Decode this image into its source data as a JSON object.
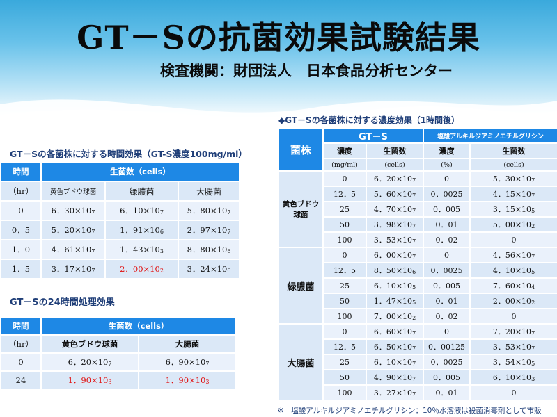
{
  "title": "GT－Sの抗菌効果試験結果",
  "subtitle": "検査機関：財団法人　日本食品分析センター",
  "section1": {
    "title": "GT－Sの各菌株に対する時間効果（GT-S濃度100mg/ml）",
    "col_time": "時間",
    "col_unit": "（hr）",
    "col_count": "生菌数（cells）",
    "bacteria": [
      "黄色ブドウ球菌",
      "緑膿菌",
      "大腸菌"
    ],
    "rows": [
      {
        "time": "0",
        "values": [
          "6．30×10",
          "6．10×10",
          "5．80×10"
        ],
        "exps": [
          "7",
          "7",
          "7"
        ]
      },
      {
        "time": "0．5",
        "values": [
          "5．20×10",
          "1．91×10",
          "2．97×10"
        ],
        "exps": [
          "7",
          "6",
          "7"
        ]
      },
      {
        "time": "1．0",
        "values": [
          "4．61×10",
          "1．43×10",
          "8．80×10"
        ],
        "exps": [
          "7",
          "3",
          "6"
        ]
      },
      {
        "time": "1．5",
        "values": [
          "3．17×10",
          "2．00×10",
          "3．24×10"
        ],
        "exps": [
          "7",
          "2",
          "6"
        ]
      }
    ]
  },
  "section2": {
    "title": "GT－Sの24時間処理効果",
    "col_time": "時間",
    "col_unit": "（hr）",
    "col_count": "生菌数（cells）",
    "bacteria": [
      "黄色ブドウ球菌",
      "大腸菌"
    ],
    "rows": [
      {
        "time": "0",
        "values": [
          "6．20×10",
          "6．90×10"
        ],
        "exps": [
          "7",
          "7"
        ]
      },
      {
        "time": "24",
        "values": [
          "1．90×10",
          "1．90×10"
        ],
        "exps": [
          "3",
          "3"
        ]
      }
    ]
  },
  "section3": {
    "title": "GT－Sの各菌株に対する濃度効果（1時間後）",
    "col_strain": "菌株",
    "group_gts": "GT－S",
    "group_ref": "塩酸アルキルジアミノエチルグリシン",
    "col_conc": "濃度",
    "col_count": "生菌数",
    "unit_conc_gts": "(mg/ml)",
    "unit_count": "(cells)",
    "unit_conc_ref": "(%)",
    "strains": [
      {
        "name": "黄色ブドウ\n球菌",
        "rows": [
          {
            "c": "0",
            "n": "6．20×10",
            "ne": "7",
            "rc": "0",
            "rn": "5．30×10",
            "rne": "7"
          },
          {
            "c": "12．5",
            "n": "5．60×10",
            "ne": "7",
            "rc": "0．0025",
            "rn": "4．15×10",
            "rne": "7"
          },
          {
            "c": "25",
            "n": "4．70×10",
            "ne": "7",
            "rc": "0．005",
            "rn": "3．15×10",
            "rne": "5"
          },
          {
            "c": "50",
            "n": "3．98×10",
            "ne": "7",
            "rc": "0．01",
            "rn": "5．00×10",
            "rne": "2"
          },
          {
            "c": "100",
            "n": "3．53×10",
            "ne": "7",
            "rc": "0．02",
            "rn": "0",
            "rne": ""
          }
        ]
      },
      {
        "name": "緑膿菌",
        "rows": [
          {
            "c": "0",
            "n": "6．00×10",
            "ne": "7",
            "rc": "0",
            "rn": "4．56×10",
            "rne": "7"
          },
          {
            "c": "12．5",
            "n": "8．50×10",
            "ne": "6",
            "rc": "0．0025",
            "rn": "4．10×10",
            "rne": "5"
          },
          {
            "c": "25",
            "n": "6．10×10",
            "ne": "5",
            "rc": "0．005",
            "rn": "7．60×10",
            "rne": "4"
          },
          {
            "c": "50",
            "n": "1．47×10",
            "ne": "5",
            "rc": "0．01",
            "rn": "2．00×10",
            "rne": "2"
          },
          {
            "c": "100",
            "n": "7．00×10",
            "ne": "2",
            "rc": "0．02",
            "rn": "0",
            "rne": ""
          }
        ]
      },
      {
        "name": "大腸菌",
        "rows": [
          {
            "c": "0",
            "n": "6．60×10",
            "ne": "7",
            "rc": "0",
            "rn": "7．20×10",
            "rne": "7"
          },
          {
            "c": "12．5",
            "n": "6．50×10",
            "ne": "7",
            "rc": "0．00125",
            "rn": "3．53×10",
            "rne": "7"
          },
          {
            "c": "25",
            "n": "6．10×10",
            "ne": "7",
            "rc": "0．0025",
            "rn": "3．54×10",
            "rne": "5"
          },
          {
            "c": "50",
            "n": "4．90×10",
            "ne": "7",
            "rc": "0．005",
            "rn": "6．10×10",
            "rne": "3"
          },
          {
            "c": "100",
            "n": "3．27×10",
            "ne": "7",
            "rc": "0．01",
            "rn": "0",
            "rne": ""
          }
        ]
      }
    ]
  },
  "note": "※　塩酸アルキルジアミノエチルグリシン：10％水溶液は殺菌消毒剤として市販",
  "colors": {
    "header": "#1e88e5",
    "row_a": "#dbe8f7",
    "row_b": "#eaf1fb",
    "highlight": "#e01010"
  }
}
